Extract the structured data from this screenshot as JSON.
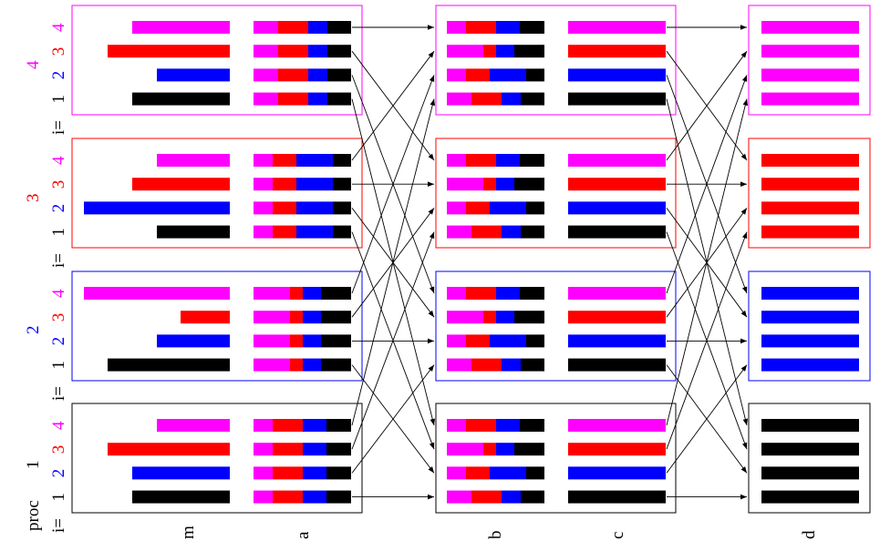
{
  "colors": {
    "p1": "#000000",
    "p2": "#0000ff",
    "p3": "#ff0000",
    "p4": "#ff00ff",
    "text": "#000000",
    "arrow": "#000000",
    "frame_default": "#000000"
  },
  "proc_label": "proc",
  "i_label": "i=",
  "process_labels": [
    "1",
    "2",
    "3",
    "4"
  ],
  "i_values": [
    "1",
    "2",
    "3",
    "4"
  ],
  "column_labels": {
    "m": "m",
    "a": "a",
    "b": "b",
    "c": "c",
    "d": "d"
  },
  "m_lengths": {
    "1": [
      107,
      107,
      134,
      80
    ],
    "2": [
      134,
      80,
      54,
      160
    ],
    "3": [
      80,
      160,
      107,
      80
    ],
    "4": [
      107,
      80,
      134,
      107
    ]
  },
  "a_segments": {
    "1": [
      21,
      33,
      26,
      27
    ],
    "2": [
      40,
      14,
      20,
      33
    ],
    "3": [
      21,
      26,
      40,
      20
    ],
    "4": [
      27,
      33,
      21,
      26
    ]
  },
  "b_segments": [
    [
      21,
      33,
      26,
      27
    ],
    [
      40,
      14,
      20,
      33
    ],
    [
      21,
      26,
      40,
      20
    ],
    [
      27,
      33,
      21,
      26
    ]
  ]
}
